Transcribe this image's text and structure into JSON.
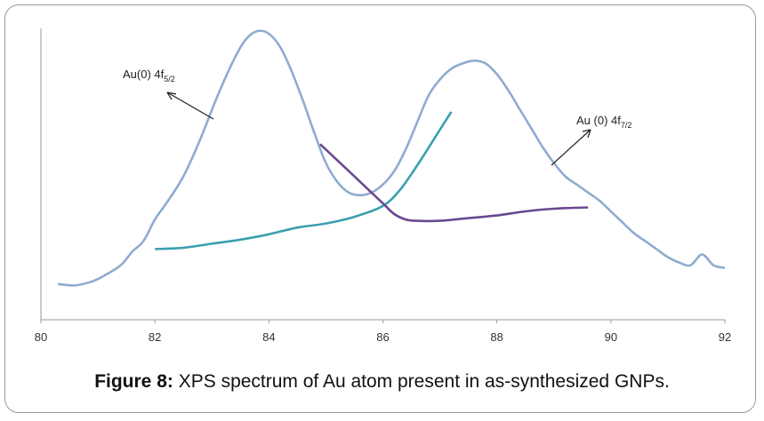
{
  "caption": {
    "label": "Figure 8:",
    "text": " XPS spectrum of Au atom present in as-synthesized GNPs."
  },
  "chart_data": {
    "type": "line",
    "title": "",
    "xlabel": "",
    "ylabel": "",
    "xlim": [
      80,
      92
    ],
    "y_ticks_shown": false,
    "xticks": [
      80,
      82,
      84,
      86,
      88,
      90,
      92
    ],
    "grid": false,
    "legend": "none",
    "series": [
      {
        "color": "#8fabd0",
        "x": [
          80.3,
          80.6,
          80.9,
          81.1,
          81.4,
          81.6,
          81.8,
          82.0,
          82.2,
          82.5,
          82.8,
          83.1,
          83.4,
          83.6,
          83.8,
          84.0,
          84.2,
          84.4,
          84.6,
          84.8,
          85.0,
          85.2,
          85.4,
          85.6,
          85.8,
          86.0,
          86.2,
          86.4,
          86.6,
          86.8,
          87.0,
          87.2,
          87.4,
          87.6,
          87.8,
          88.0,
          88.2,
          88.4,
          88.6,
          88.8,
          89.0,
          89.2,
          89.4,
          89.6,
          89.8,
          90.0,
          90.2,
          90.4,
          90.6,
          90.8,
          91.0,
          91.2,
          91.4,
          91.6,
          91.8,
          92.0
        ],
        "y": [
          0.06,
          0.055,
          0.07,
          0.09,
          0.13,
          0.18,
          0.22,
          0.3,
          0.36,
          0.46,
          0.6,
          0.76,
          0.9,
          0.97,
          1.0,
          0.99,
          0.94,
          0.85,
          0.74,
          0.62,
          0.51,
          0.44,
          0.4,
          0.39,
          0.4,
          0.43,
          0.48,
          0.56,
          0.66,
          0.76,
          0.82,
          0.86,
          0.88,
          0.89,
          0.88,
          0.84,
          0.78,
          0.71,
          0.64,
          0.57,
          0.51,
          0.46,
          0.43,
          0.4,
          0.37,
          0.33,
          0.29,
          0.25,
          0.22,
          0.19,
          0.16,
          0.14,
          0.13,
          0.17,
          0.13,
          0.12
        ]
      },
      {
        "color": "#3a9fb0",
        "x": [
          82.0,
          82.5,
          83.0,
          83.5,
          84.0,
          84.5,
          85.0,
          85.5,
          86.0,
          86.3,
          86.6,
          86.9,
          87.2
        ],
        "y": [
          0.19,
          0.195,
          0.21,
          0.225,
          0.245,
          0.27,
          0.285,
          0.31,
          0.35,
          0.41,
          0.5,
          0.6,
          0.7
        ]
      },
      {
        "color": "#6a4890",
        "x": [
          84.9,
          85.2,
          85.5,
          85.8,
          86.0,
          86.2,
          86.4,
          86.6,
          87.0,
          87.5,
          88.0,
          88.5,
          89.0,
          89.6
        ],
        "y": [
          0.58,
          0.52,
          0.46,
          0.4,
          0.36,
          0.32,
          0.3,
          0.295,
          0.295,
          0.305,
          0.315,
          0.33,
          0.34,
          0.345
        ]
      }
    ],
    "annotations": [
      {
        "text": "Au(0) 4f",
        "subscript": "5/2"
      },
      {
        "text": "Au (0) 4f",
        "subscript": "7/2"
      }
    ]
  }
}
